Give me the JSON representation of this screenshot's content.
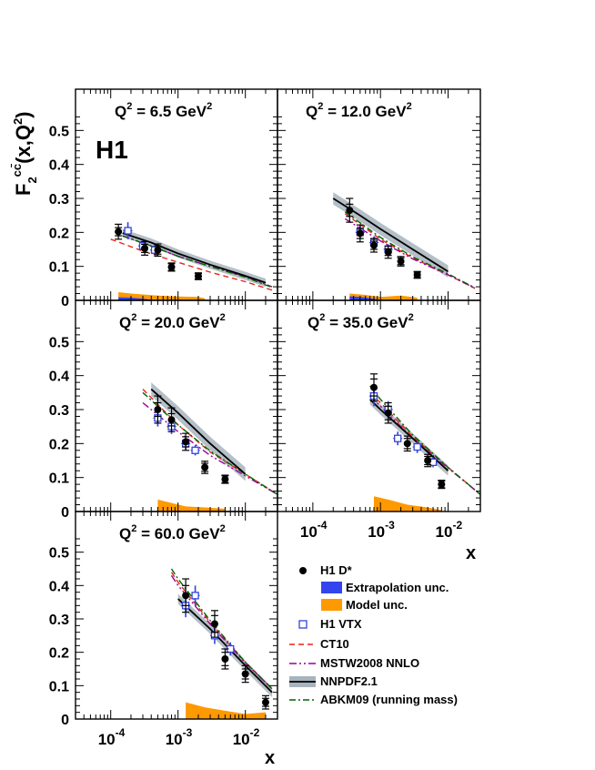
{
  "figure": {
    "logo": "H1",
    "ylabel": "F2cc̄(x,Q²)",
    "xlabel": "x",
    "x_tick_labels": [
      "10-4",
      "10-3",
      "10-2"
    ],
    "y_tick_labels": [
      "0",
      "0.1",
      "0.2",
      "0.3",
      "0.4",
      "0.5"
    ]
  },
  "chart_data": {
    "type": "scatter",
    "x_scale": "log",
    "xlim": [
      3e-05,
      0.03
    ],
    "ylim": [
      0,
      0.6
    ],
    "xlabel": "x",
    "ylabel": "F2cc̄(x,Q²)",
    "legend_position": "bottom-right",
    "legend": [
      {
        "key": "h1dstar",
        "label": "H1 D*",
        "color": "#000000"
      },
      {
        "key": "extrap",
        "label": "Extrapolation unc.",
        "color": "#3344ee"
      },
      {
        "key": "model",
        "label": "Model unc.",
        "color": "#ff9900"
      },
      {
        "key": "vtx",
        "label": "H1 VTX",
        "color": "#3344dd"
      },
      {
        "key": "ct10",
        "label": "CT10",
        "color": "#e8251a"
      },
      {
        "key": "mstw",
        "label": "MSTW2008 NNLO",
        "color": "#990099"
      },
      {
        "key": "nnpdf",
        "label": "NNPDF2.1",
        "color": "#000000",
        "band": "#a8b4bd"
      },
      {
        "key": "abkm",
        "label": "ABKM09 (running mass)",
        "color": "#006600"
      }
    ],
    "panels": [
      {
        "q2_prefix": "Q",
        "q2_exp": "2",
        "q2_value": " = 6.5 GeV",
        "q2_unit_exp": "2",
        "dstar": [
          [
            0.00013,
            0.202,
            0.012,
            0.022
          ],
          [
            0.00032,
            0.153,
            0.012,
            0.02
          ],
          [
            0.0005,
            0.148,
            0.012,
            0.018
          ],
          [
            0.0008,
            0.098,
            0.01,
            0.012
          ],
          [
            0.002,
            0.071,
            0.008,
            0.01
          ]
        ],
        "vtx": [
          [
            0.00018,
            0.205,
            0.025
          ],
          [
            0.0003,
            0.16,
            0.015
          ],
          [
            0.00045,
            0.148,
            0.015
          ]
        ],
        "curves": {
          "ct10": [
            [
              0.0001,
              0.18
            ],
            [
              0.0003,
              0.145
            ],
            [
              0.001,
              0.112
            ],
            [
              0.003,
              0.083
            ],
            [
              0.01,
              0.055
            ],
            [
              0.025,
              0.03
            ]
          ],
          "mstw": [
            [
              0.00015,
              0.19
            ],
            [
              0.0004,
              0.16
            ],
            [
              0.001,
              0.13
            ],
            [
              0.003,
              0.1
            ],
            [
              0.01,
              0.07
            ],
            [
              0.025,
              0.04
            ]
          ],
          "abkm": [
            [
              0.00015,
              0.19
            ],
            [
              0.0004,
              0.16
            ],
            [
              0.001,
              0.13
            ],
            [
              0.003,
              0.1
            ],
            [
              0.01,
              0.068
            ],
            [
              0.025,
              0.038
            ]
          ],
          "nnpdf": [
            [
              0.00015,
              0.198
            ],
            [
              0.0004,
              0.17
            ],
            [
              0.001,
              0.138
            ],
            [
              0.003,
              0.105
            ],
            [
              0.01,
              0.072
            ],
            [
              0.02,
              0.052
            ]
          ]
        },
        "nnpdf_halfwidth": 0.012,
        "model_band": [
          [
            0.00013,
            0.024
          ],
          [
            0.0002,
            0.02
          ],
          [
            0.0005,
            0.014
          ],
          [
            0.0008,
            0.012
          ],
          [
            0.002,
            0.01
          ],
          [
            0.0025,
            0.006
          ]
        ],
        "extrap_band": [
          [
            0.00013,
            0.009
          ],
          [
            0.0002,
            0.008
          ],
          [
            0.0003,
            0.005
          ],
          [
            0.0005,
            0.0
          ]
        ],
        "show_logo": true
      },
      {
        "q2_prefix": "Q",
        "q2_exp": "2",
        "q2_value": " = 12.0 GeV",
        "q2_unit_exp": "2",
        "dstar": [
          [
            0.00035,
            0.265,
            0.018,
            0.035
          ],
          [
            0.0005,
            0.197,
            0.015,
            0.025
          ],
          [
            0.0008,
            0.162,
            0.012,
            0.02
          ],
          [
            0.0013,
            0.142,
            0.01,
            0.018
          ],
          [
            0.002,
            0.115,
            0.01,
            0.014
          ],
          [
            0.0035,
            0.075,
            0.008,
            0.01
          ]
        ],
        "vtx": [
          [
            0.0005,
            0.2,
            0.02
          ],
          [
            0.0008,
            0.17,
            0.018
          ],
          [
            0.0013,
            0.15,
            0.015
          ]
        ],
        "curves": {
          "ct10": [
            [
              0.0003,
              0.255
            ],
            [
              0.001,
              0.18
            ],
            [
              0.003,
              0.125
            ],
            [
              0.01,
              0.075
            ],
            [
              0.025,
              0.035
            ]
          ],
          "mstw": [
            [
              0.0003,
              0.24
            ],
            [
              0.001,
              0.175
            ],
            [
              0.003,
              0.122
            ],
            [
              0.01,
              0.075
            ],
            [
              0.025,
              0.036
            ]
          ],
          "abkm": [
            [
              0.0003,
              0.26
            ],
            [
              0.001,
              0.185
            ],
            [
              0.003,
              0.128
            ],
            [
              0.01,
              0.078
            ],
            [
              0.025,
              0.037
            ]
          ],
          "nnpdf": [
            [
              0.0002,
              0.3
            ],
            [
              0.0005,
              0.25
            ],
            [
              0.001,
              0.21
            ],
            [
              0.003,
              0.15
            ],
            [
              0.01,
              0.085
            ]
          ]
        },
        "nnpdf_halfwidth": 0.018,
        "model_band": [
          [
            0.00035,
            0.02
          ],
          [
            0.0006,
            0.016
          ],
          [
            0.001,
            0.01
          ],
          [
            0.002,
            0.014
          ],
          [
            0.0035,
            0.008
          ]
        ],
        "extrap_band": [
          [
            0.00035,
            0.012
          ],
          [
            0.0005,
            0.01
          ],
          [
            0.0008,
            0.005
          ],
          [
            0.001,
            0.0
          ]
        ],
        "show_logo": false
      },
      {
        "q2_prefix": "Q",
        "q2_exp": "2",
        "q2_value": " = 20.0 GeV",
        "q2_unit_exp": "2",
        "dstar": [
          [
            0.0005,
            0.3,
            0.02,
            0.04
          ],
          [
            0.0008,
            0.27,
            0.018,
            0.035
          ],
          [
            0.0013,
            0.205,
            0.015,
            0.025
          ],
          [
            0.0025,
            0.13,
            0.012,
            0.018
          ],
          [
            0.005,
            0.095,
            0.01,
            0.012
          ]
        ],
        "vtx": [
          [
            0.0005,
            0.275,
            0.025
          ],
          [
            0.0008,
            0.25,
            0.022
          ],
          [
            0.0013,
            0.2,
            0.018
          ],
          [
            0.0018,
            0.18,
            0.015
          ]
        ],
        "curves": {
          "ct10": [
            [
              0.0003,
              0.36
            ],
            [
              0.001,
              0.255
            ],
            [
              0.003,
              0.175
            ],
            [
              0.01,
              0.11
            ],
            [
              0.03,
              0.05
            ]
          ],
          "mstw": [
            [
              0.0003,
              0.32
            ],
            [
              0.001,
              0.235
            ],
            [
              0.003,
              0.165
            ],
            [
              0.01,
              0.105
            ],
            [
              0.03,
              0.05
            ]
          ],
          "abkm": [
            [
              0.0003,
              0.35
            ],
            [
              0.001,
              0.255
            ],
            [
              0.003,
              0.178
            ],
            [
              0.01,
              0.11
            ],
            [
              0.03,
              0.05
            ]
          ],
          "nnpdf": [
            [
              0.0004,
              0.36
            ],
            [
              0.001,
              0.29
            ],
            [
              0.003,
              0.2
            ],
            [
              0.01,
              0.11
            ]
          ]
        },
        "nnpdf_halfwidth": 0.02,
        "model_band": [
          [
            0.0005,
            0.035
          ],
          [
            0.0008,
            0.025
          ],
          [
            0.0013,
            0.015
          ],
          [
            0.0025,
            0.012
          ],
          [
            0.005,
            0.008
          ]
        ],
        "extrap_band": [],
        "show_logo": false
      },
      {
        "q2_prefix": "Q",
        "q2_exp": "2",
        "q2_value": " = 35.0 GeV",
        "q2_unit_exp": "2",
        "dstar": [
          [
            0.0008,
            0.365,
            0.025,
            0.04
          ],
          [
            0.0013,
            0.29,
            0.02,
            0.03
          ],
          [
            0.0025,
            0.2,
            0.015,
            0.022
          ],
          [
            0.005,
            0.15,
            0.012,
            0.018
          ],
          [
            0.008,
            0.08,
            0.01,
            0.012
          ]
        ],
        "vtx": [
          [
            0.0008,
            0.34,
            0.03
          ],
          [
            0.0013,
            0.3,
            0.025
          ],
          [
            0.0018,
            0.215,
            0.02
          ],
          [
            0.0035,
            0.19,
            0.018
          ],
          [
            0.006,
            0.145,
            0.015
          ]
        ],
        "curves": {
          "ct10": [
            [
              0.0007,
              0.35
            ],
            [
              0.001,
              0.32
            ],
            [
              0.003,
              0.22
            ],
            [
              0.01,
              0.13
            ],
            [
              0.03,
              0.05
            ]
          ],
          "mstw": [
            [
              0.0007,
              0.34
            ],
            [
              0.001,
              0.31
            ],
            [
              0.003,
              0.215
            ],
            [
              0.01,
              0.128
            ],
            [
              0.03,
              0.05
            ]
          ],
          "abkm": [
            [
              0.0007,
              0.37
            ],
            [
              0.001,
              0.33
            ],
            [
              0.003,
              0.225
            ],
            [
              0.01,
              0.13
            ],
            [
              0.03,
              0.05
            ]
          ],
          "nnpdf": [
            [
              0.0007,
              0.33
            ],
            [
              0.001,
              0.3
            ],
            [
              0.003,
              0.215
            ],
            [
              0.01,
              0.12
            ]
          ]
        },
        "nnpdf_halfwidth": 0.015,
        "model_band": [
          [
            0.0008,
            0.045
          ],
          [
            0.0013,
            0.035
          ],
          [
            0.0025,
            0.02
          ],
          [
            0.005,
            0.012
          ],
          [
            0.008,
            0.004
          ]
        ],
        "extrap_band": [],
        "show_logo": false
      },
      {
        "q2_prefix": "Q",
        "q2_exp": "2",
        "q2_value": " = 60.0 GeV",
        "q2_unit_exp": "2",
        "dstar": [
          [
            0.0013,
            0.37,
            0.03,
            0.05
          ],
          [
            0.0035,
            0.285,
            0.025,
            0.04
          ],
          [
            0.005,
            0.18,
            0.02,
            0.03
          ],
          [
            0.01,
            0.135,
            0.015,
            0.025
          ],
          [
            0.02,
            0.05,
            0.012,
            0.02
          ]
        ],
        "vtx": [
          [
            0.0013,
            0.34,
            0.035
          ],
          [
            0.0018,
            0.37,
            0.03
          ],
          [
            0.0035,
            0.25,
            0.025
          ],
          [
            0.006,
            0.21,
            0.02
          ]
        ],
        "curves": {
          "ct10": [
            [
              0.0008,
              0.44
            ],
            [
              0.001,
              0.41
            ],
            [
              0.003,
              0.29
            ],
            [
              0.01,
              0.17
            ],
            [
              0.025,
              0.09
            ]
          ],
          "mstw": [
            [
              0.0008,
              0.43
            ],
            [
              0.001,
              0.4
            ],
            [
              0.003,
              0.285
            ],
            [
              0.01,
              0.168
            ],
            [
              0.025,
              0.09
            ]
          ],
          "abkm": [
            [
              0.0008,
              0.45
            ],
            [
              0.001,
              0.42
            ],
            [
              0.003,
              0.295
            ],
            [
              0.01,
              0.17
            ],
            [
              0.025,
              0.09
            ]
          ],
          "nnpdf": [
            [
              0.001,
              0.36
            ],
            [
              0.003,
              0.27
            ],
            [
              0.01,
              0.16
            ],
            [
              0.025,
              0.08
            ]
          ]
        },
        "nnpdf_halfwidth": 0.015,
        "model_band": [
          [
            0.0013,
            0.05
          ],
          [
            0.0025,
            0.035
          ],
          [
            0.005,
            0.025
          ],
          [
            0.01,
            0.015
          ],
          [
            0.02,
            0.02
          ]
        ],
        "extrap_band": [],
        "show_logo": false
      }
    ]
  }
}
